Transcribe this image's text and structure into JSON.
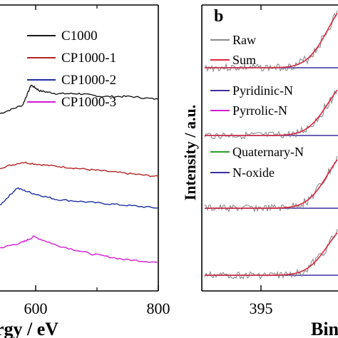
{
  "chart_data": [
    {
      "type": "line",
      "panel": "left (cropped)",
      "xlabel": "rgy / eV",
      "ylabel": "",
      "x_ticks": [
        "600",
        "800"
      ],
      "xlim": [
        520,
        800
      ],
      "grid": false,
      "legend_position": "top-right",
      "series": [
        {
          "name": "C1000",
          "color": "#1a1a1a",
          "x": [
            520,
            560,
            575,
            590,
            620,
            660,
            700,
            750,
            800
          ],
          "y": [
            0.62,
            0.65,
            0.72,
            0.7,
            0.69,
            0.69,
            0.68,
            0.68,
            0.67
          ]
        },
        {
          "name": "CP1000-1",
          "color": "#b22222",
          "x": [
            520,
            560,
            600,
            650,
            700,
            750,
            800
          ],
          "y": [
            0.43,
            0.45,
            0.44,
            0.43,
            0.42,
            0.41,
            0.4
          ]
        },
        {
          "name": "CP1000-2",
          "color": "#1f2fa0",
          "x": [
            520,
            550,
            580,
            620,
            680,
            740,
            800
          ],
          "y": [
            0.3,
            0.36,
            0.34,
            0.32,
            0.31,
            0.3,
            0.29
          ]
        },
        {
          "name": "CP1000-3",
          "color": "#d01ed0",
          "x": [
            520,
            560,
            580,
            620,
            680,
            740,
            800
          ],
          "y": [
            0.15,
            0.17,
            0.19,
            0.16,
            0.13,
            0.11,
            0.1
          ]
        }
      ]
    },
    {
      "type": "line",
      "panel_label": "b",
      "xlabel": "Bin",
      "ylabel": "Intensity / a.u.",
      "x_ticks": [
        "395"
      ],
      "grid": false,
      "legend_position": "top-left",
      "legend": [
        {
          "name": "Raw",
          "color": "#8a8a8a"
        },
        {
          "name": "Sum",
          "color": "#d9263f"
        },
        {
          "name": "Pyridinic-N",
          "color": "#3b2f9e"
        },
        {
          "name": "Pyrrolic-N",
          "color": "#d01ed0"
        },
        {
          "name": "Quaternary-N",
          "color": "#2e9e2e"
        },
        {
          "name": "N-oxide",
          "color": "#3b2f9e"
        }
      ]
    }
  ]
}
